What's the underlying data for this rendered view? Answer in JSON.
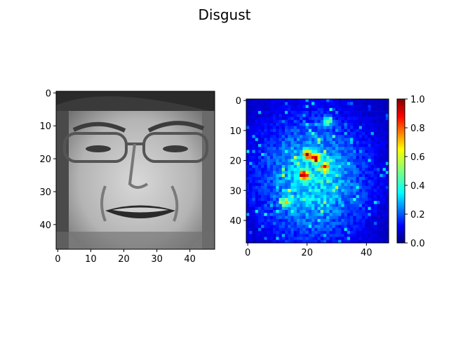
{
  "figure": {
    "title": "Disgust"
  },
  "chart_data": [
    {
      "type": "image",
      "colormap": "gray",
      "x": {
        "ticks": [
          0,
          10,
          20,
          30,
          40
        ],
        "range": [
          -0.5,
          47.5
        ]
      },
      "y": {
        "ticks": [
          0,
          10,
          20,
          30,
          40
        ],
        "range": [
          -0.5,
          47.5
        ],
        "inverted": true
      },
      "grid": false
    },
    {
      "type": "heatmap",
      "colormap": "jet",
      "x": {
        "ticks": [
          0,
          20,
          40
        ],
        "range": [
          -0.5,
          47.5
        ]
      },
      "y": {
        "ticks": [
          0,
          10,
          20,
          30,
          40
        ],
        "range": [
          -0.5,
          47.5
        ],
        "inverted": true
      },
      "colorbar": {
        "ticks": [
          "0.0",
          "0.2",
          "0.4",
          "0.6",
          "0.8",
          "1.0"
        ],
        "range": [
          0,
          1
        ]
      },
      "grid": false
    }
  ]
}
